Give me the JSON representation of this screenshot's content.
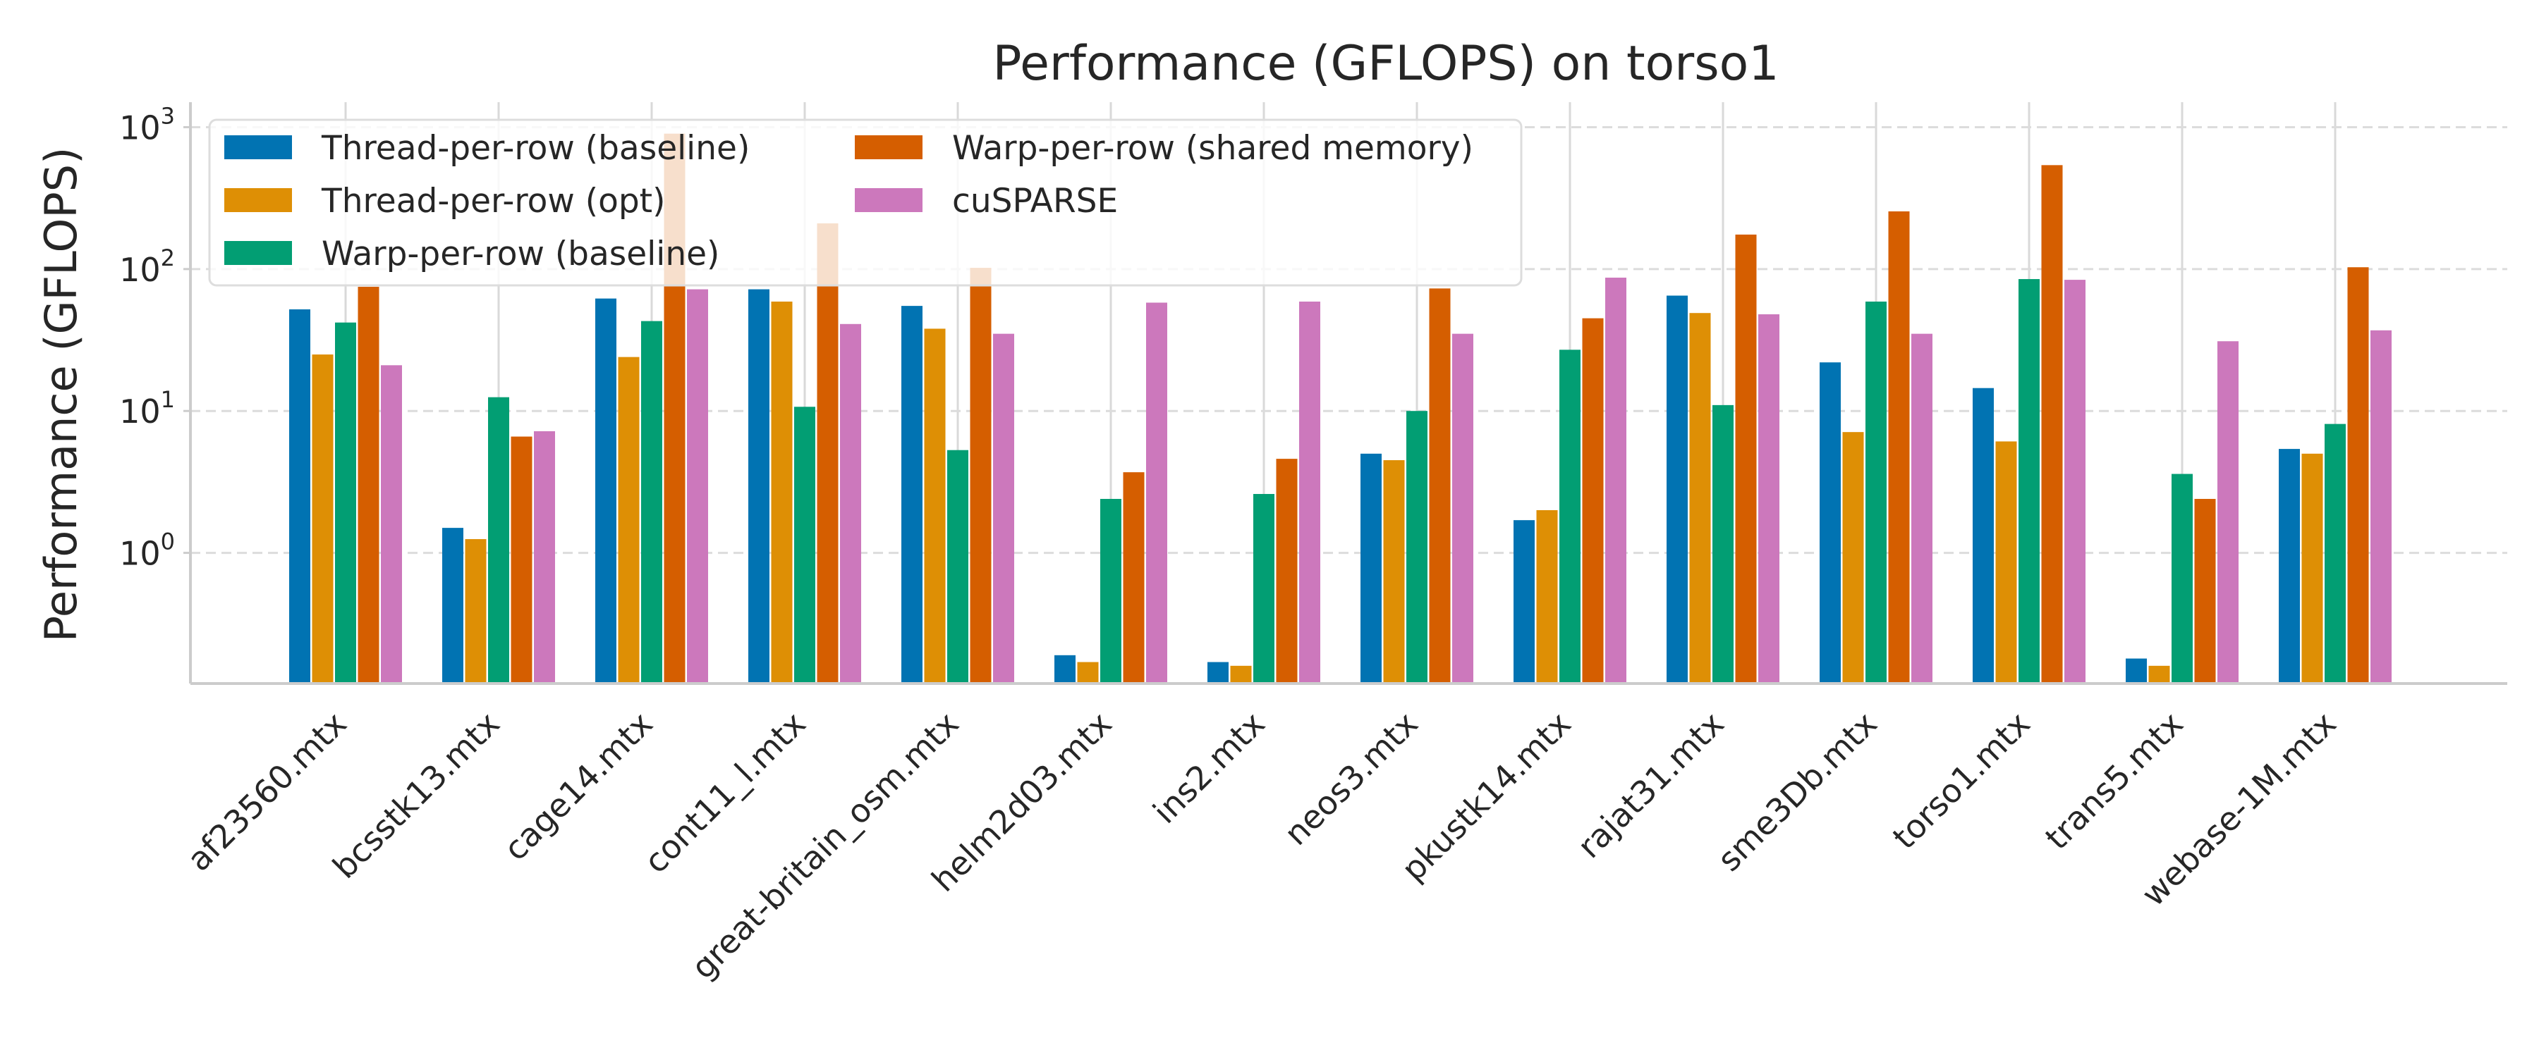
{
  "chart_data": {
    "type": "bar",
    "title": "Performance (GFLOPS) on torso1",
    "xlabel": "",
    "ylabel": "Performance (GFLOPS)",
    "yscale": "log",
    "ylim": [
      0.12,
      1500
    ],
    "yticks": [
      {
        "value": 1,
        "base": "10",
        "exp": "0"
      },
      {
        "value": 10,
        "base": "10",
        "exp": "1"
      },
      {
        "value": 100,
        "base": "10",
        "exp": "2"
      },
      {
        "value": 1000,
        "base": "10",
        "exp": "3"
      }
    ],
    "grid": "y-dashed",
    "legend_position": "top-left",
    "categories": [
      "af23560.mtx",
      "bcsstk13.mtx",
      "cage14.mtx",
      "cont11_l.mtx",
      "great-britain_osm.mtx",
      "helm2d03.mtx",
      "ins2.mtx",
      "neos3.mtx",
      "pkustk14.mtx",
      "rajat31.mtx",
      "sme3Db.mtx",
      "torso1.mtx",
      "trans5.mtx",
      "webase-1M.mtx"
    ],
    "series": [
      {
        "name": "Thread-per-row (baseline)",
        "color": "#0173b2",
        "values": [
          52,
          1.5,
          62,
          72,
          55,
          0.19,
          0.17,
          5.0,
          1.7,
          65,
          22,
          14.5,
          0.18,
          5.4
        ]
      },
      {
        "name": "Thread-per-row (opt)",
        "color": "#de8f05",
        "values": [
          25,
          1.25,
          24,
          59,
          38,
          0.17,
          0.16,
          4.5,
          2.0,
          49,
          7.1,
          6.1,
          0.16,
          5.0
        ]
      },
      {
        "name": "Warp-per-row (baseline)",
        "color": "#029e73",
        "values": [
          42,
          12.5,
          43,
          10.7,
          5.3,
          2.4,
          2.6,
          10,
          27,
          11,
          59,
          85,
          3.6,
          8.1
        ]
      },
      {
        "name": "Warp-per-row (shared memory)",
        "color": "#d55e00",
        "values": [
          75,
          6.6,
          900,
          210,
          102,
          3.7,
          4.6,
          73,
          45,
          175,
          255,
          540,
          2.4,
          103
        ]
      },
      {
        "name": "cuSPARSE",
        "color": "#cc78bc",
        "values": [
          21,
          7.2,
          72,
          41,
          35,
          58,
          59,
          35,
          87,
          48,
          35,
          84,
          31,
          37
        ]
      }
    ]
  }
}
